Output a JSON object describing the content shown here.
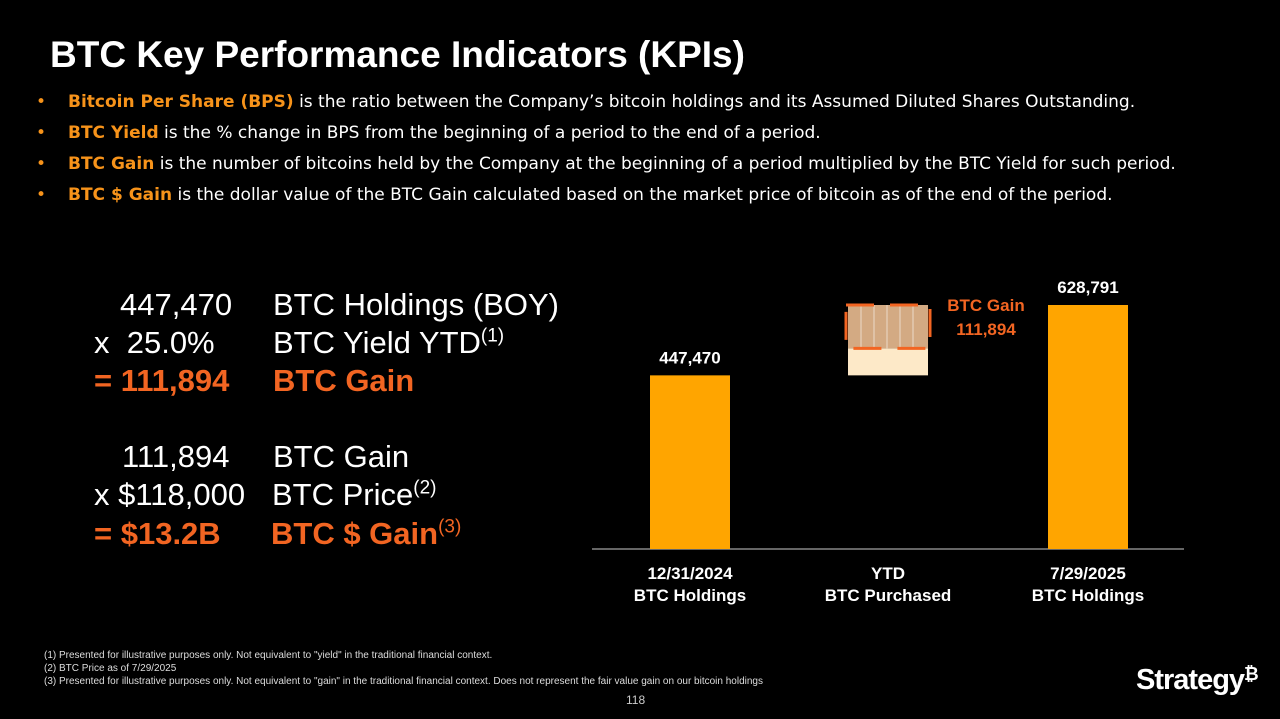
{
  "title": "BTC Key Performance Indicators (KPIs)",
  "bullets": [
    {
      "term": "Bitcoin Per Share (BPS)",
      "text": " is the ratio between the Company’s bitcoin holdings and its Assumed Diluted Shares Outstanding."
    },
    {
      "term": "BTC Yield",
      "text": " is the % change in BPS from the beginning of a period to the end of a period."
    },
    {
      "term": "BTC Gain",
      "text": " is the number of bitcoins held by the Company at the beginning of a period multiplied by the BTC Yield for such period."
    },
    {
      "term": "BTC $ Gain",
      "text": " is the dollar value of the BTC Gain calculated based on the market price of bitcoin as of the end of the period."
    }
  ],
  "calc": {
    "row1": {
      "value": "447,470",
      "label": "BTC Holdings (BOY)"
    },
    "row2": {
      "value": "x  25.0%",
      "label": "BTC Yield YTD",
      "sup": "(1)"
    },
    "row3": {
      "value": "= 111,894",
      "label": "BTC Gain"
    },
    "row4": {
      "value": "111,894",
      "label": "BTC Gain"
    },
    "row5": {
      "value": "x $118,000",
      "label": "BTC Price",
      "sup": "(2)"
    },
    "row6": {
      "value": "= $13.2B",
      "label": "BTC $ Gain",
      "sup": "(3)"
    }
  },
  "chart_data": {
    "type": "bar",
    "subtype": "waterfall",
    "categories": [
      [
        "12/31/2024",
        "BTC Holdings"
      ],
      [
        "YTD",
        "BTC Purchased"
      ],
      [
        "7/29/2025",
        "BTC Holdings"
      ]
    ],
    "bars": [
      {
        "base": 0,
        "value": 447470,
        "label": "447,470"
      },
      {
        "base": 447470,
        "value": 69427,
        "label": ""
      },
      {
        "base": 0,
        "value": 628791,
        "label": "628,791"
      }
    ],
    "gain_segment": {
      "base": 516897,
      "value": 111894,
      "label_line1": "BTC Gain",
      "label_line2": "111,894"
    },
    "ylim": [
      0,
      628791
    ],
    "colors": {
      "bar": "#ffa500",
      "purchased": "#fde9c8",
      "gain": "#f26522",
      "gain_fill": "#f8c89a",
      "axis": "#888888"
    }
  },
  "footnotes": [
    "(1) Presented for illustrative purposes only. Not equivalent to \"yield\" in the traditional financial context.",
    "(2) BTC Price as of 7/29/2025",
    "(3) Presented for illustrative purposes only. Not equivalent to \"gain\" in the traditional financial context. Does not represent the fair value gain on our bitcoin holdings"
  ],
  "page_number": "118",
  "logo": {
    "text": "Strategy",
    "mark": "₿"
  }
}
